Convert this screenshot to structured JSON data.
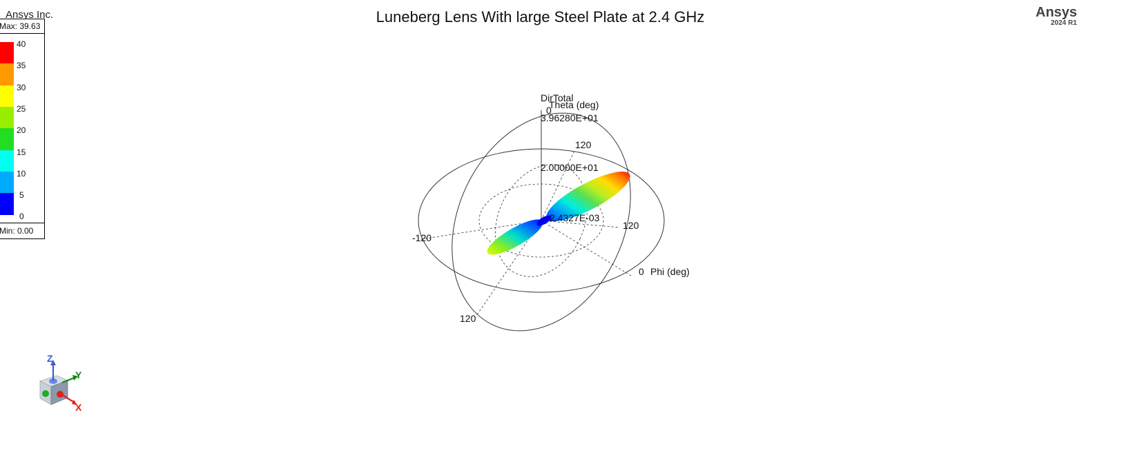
{
  "header": {
    "title": "Luneberg Lens With large Steel Plate at 2.4 GHz",
    "corner_text": "Ansys Inc.",
    "brand": "Ansys",
    "brand_version": "2024 R1"
  },
  "legend": {
    "max_label": "Max: 39.63",
    "min_label": "Min: 0.00",
    "ticks": [
      "40",
      "35",
      "30",
      "25",
      "20",
      "15",
      "10",
      "5",
      "0"
    ],
    "colors": [
      "#ff0000",
      "#ff9900",
      "#ffff00",
      "#99ee00",
      "#22dd22",
      "#00ffee",
      "#00aaff",
      "#0000ff"
    ]
  },
  "chart_data": {
    "type": "3d-polar-pattern",
    "quantity": "DirTotal",
    "theta_axis_label": "Theta (deg)",
    "phi_axis_label": "Phi (deg)",
    "radial_labels": [
      "3.96280E+01",
      "2.00000E+01",
      "2.4327E-03"
    ],
    "theta_tick_labels": [
      "0",
      "120",
      "120"
    ],
    "phi_tick_labels": [
      "0",
      "120",
      "-120"
    ],
    "color_scale_range": [
      0.0,
      39.63
    ]
  },
  "triad": {
    "x_label": "X",
    "y_label": "Y",
    "z_label": "Z",
    "x_color": "#e02020",
    "y_color": "#108810",
    "z_color": "#3a5bd8"
  }
}
